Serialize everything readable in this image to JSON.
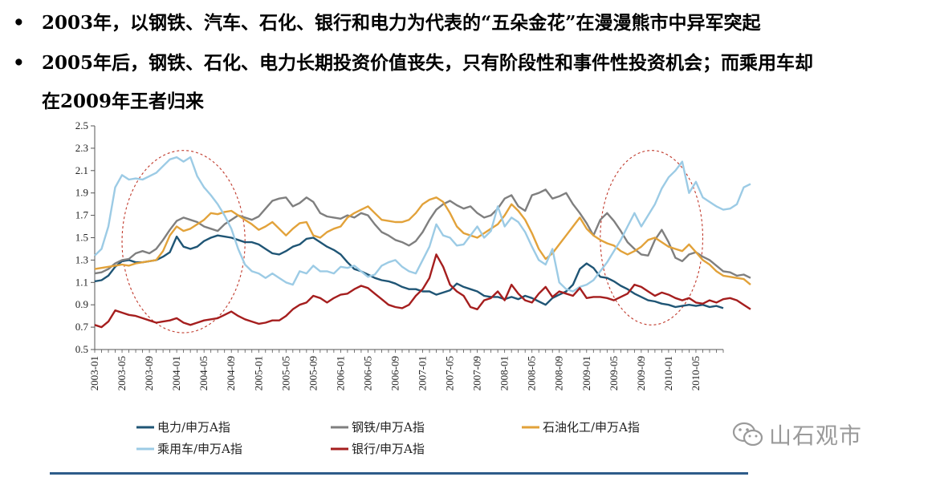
{
  "bullets": [
    {
      "marker": "•",
      "text": "2003年，以钢铁、汽车、石化、银行和电力为代表的“五朵金花”在漫漫熊市中异军突起"
    },
    {
      "marker": "•",
      "text": "2005年后，钢铁、石化、电力长期投资价值丧失，只有阶段性和事件性投资机会；而乘用车却",
      "continuation": "在2009年王者归来"
    }
  ],
  "watermark": {
    "icon": "wechat-icon",
    "text": "山石观市"
  },
  "chart_data": {
    "type": "line",
    "title": "",
    "xlabel": "",
    "ylabel": "",
    "ylim": [
      0.5,
      2.5
    ],
    "yticks": [
      "0.5",
      "0.7",
      "0.9",
      "1.1",
      "1.3",
      "1.5",
      "1.7",
      "1.9",
      "2.1",
      "2.3",
      "2.5"
    ],
    "xticks": [
      "2003-01",
      "2003-05",
      "2003-09",
      "2004-01",
      "2004-05",
      "2004-09",
      "2005-01",
      "2005-05",
      "2005-09",
      "2006-01",
      "2006-05",
      "2006-09",
      "2007-01",
      "2007-05",
      "2007-09",
      "2008-01",
      "2008-05",
      "2008-09",
      "2009-01",
      "2009-05",
      "2009-09",
      "2010-01",
      "2010-05"
    ],
    "x_start": "2003-01",
    "x_end": "2010-09",
    "grid": false,
    "legend_position": "bottom",
    "annotations": [
      {
        "shape": "dashed-ellipse",
        "period": "2003-2004",
        "x_range": [
          4,
          22
        ],
        "y_range": [
          0.65,
          2.28
        ]
      },
      {
        "shape": "dashed-ellipse",
        "period": "2009-2010",
        "x_range": [
          74,
          89
        ],
        "y_range": [
          0.72,
          2.28
        ]
      }
    ],
    "series": [
      {
        "name": "电力/申万A指",
        "color": "#1f5575",
        "values": [
          1.11,
          1.12,
          1.16,
          1.24,
          1.29,
          1.3,
          1.28,
          1.28,
          1.29,
          1.3,
          1.33,
          1.37,
          1.51,
          1.42,
          1.4,
          1.42,
          1.47,
          1.5,
          1.52,
          1.51,
          1.5,
          1.48,
          1.46,
          1.46,
          1.44,
          1.4,
          1.36,
          1.35,
          1.38,
          1.42,
          1.44,
          1.49,
          1.5,
          1.46,
          1.42,
          1.39,
          1.35,
          1.28,
          1.22,
          1.2,
          1.17,
          1.14,
          1.12,
          1.11,
          1.09,
          1.06,
          1.04,
          1.04,
          1.02,
          1.02,
          0.99,
          1.01,
          1.03,
          1.09,
          1.06,
          1.04,
          1.02,
          0.98,
          0.97,
          0.97,
          0.95,
          0.97,
          0.95,
          0.98,
          0.96,
          0.93,
          0.9,
          0.96,
          0.99,
          1.02,
          1.08,
          1.22,
          1.27,
          1.23,
          1.15,
          1.14,
          1.11,
          1.07,
          1.04,
          1.0,
          0.97,
          0.94,
          0.93,
          0.91,
          0.9,
          0.88,
          0.89,
          0.9,
          0.89,
          0.9,
          0.88,
          0.89,
          0.87
        ]
      },
      {
        "name": "钢铁/申万A指",
        "color": "#7f7f7f",
        "values": [
          1.18,
          1.19,
          1.22,
          1.27,
          1.3,
          1.31,
          1.36,
          1.38,
          1.36,
          1.4,
          1.48,
          1.57,
          1.65,
          1.68,
          1.66,
          1.64,
          1.6,
          1.58,
          1.56,
          1.62,
          1.66,
          1.7,
          1.68,
          1.66,
          1.69,
          1.76,
          1.83,
          1.85,
          1.86,
          1.78,
          1.81,
          1.86,
          1.82,
          1.72,
          1.69,
          1.68,
          1.67,
          1.7,
          1.68,
          1.72,
          1.7,
          1.62,
          1.55,
          1.52,
          1.48,
          1.46,
          1.43,
          1.47,
          1.55,
          1.66,
          1.75,
          1.8,
          1.83,
          1.79,
          1.76,
          1.78,
          1.72,
          1.68,
          1.7,
          1.76,
          1.85,
          1.88,
          1.78,
          1.74,
          1.88,
          1.9,
          1.93,
          1.85,
          1.87,
          1.9,
          1.8,
          1.72,
          1.63,
          1.52,
          1.66,
          1.72,
          1.65,
          1.56,
          1.46,
          1.4,
          1.35,
          1.34,
          1.48,
          1.57,
          1.46,
          1.32,
          1.29,
          1.35,
          1.37,
          1.33,
          1.3,
          1.25,
          1.2,
          1.19,
          1.16,
          1.17,
          1.14
        ]
      },
      {
        "name": "石油化工/申万A指",
        "color": "#e2a23a",
        "values": [
          1.22,
          1.23,
          1.24,
          1.25,
          1.26,
          1.25,
          1.27,
          1.28,
          1.29,
          1.3,
          1.38,
          1.52,
          1.6,
          1.56,
          1.58,
          1.62,
          1.66,
          1.72,
          1.71,
          1.73,
          1.74,
          1.7,
          1.66,
          1.62,
          1.57,
          1.6,
          1.64,
          1.58,
          1.52,
          1.58,
          1.63,
          1.64,
          1.52,
          1.5,
          1.55,
          1.58,
          1.6,
          1.68,
          1.72,
          1.75,
          1.78,
          1.72,
          1.66,
          1.65,
          1.64,
          1.64,
          1.66,
          1.72,
          1.8,
          1.84,
          1.86,
          1.82,
          1.72,
          1.6,
          1.54,
          1.52,
          1.5,
          1.54,
          1.58,
          1.62,
          1.7,
          1.8,
          1.74,
          1.66,
          1.54,
          1.4,
          1.31,
          1.36,
          1.44,
          1.52,
          1.6,
          1.68,
          1.58,
          1.52,
          1.48,
          1.45,
          1.43,
          1.38,
          1.35,
          1.38,
          1.42,
          1.48,
          1.5,
          1.46,
          1.42,
          1.4,
          1.38,
          1.44,
          1.37,
          1.3,
          1.26,
          1.2,
          1.16,
          1.15,
          1.14,
          1.13,
          1.08
        ]
      },
      {
        "name": "乘用车/申万A指",
        "color": "#9ccbe5",
        "values": [
          1.34,
          1.4,
          1.6,
          1.95,
          2.06,
          2.02,
          2.03,
          2.02,
          2.05,
          2.08,
          2.14,
          2.2,
          2.22,
          2.18,
          2.22,
          2.05,
          1.95,
          1.88,
          1.8,
          1.7,
          1.58,
          1.4,
          1.26,
          1.2,
          1.18,
          1.14,
          1.18,
          1.14,
          1.1,
          1.08,
          1.2,
          1.18,
          1.25,
          1.2,
          1.2,
          1.18,
          1.24,
          1.23,
          1.25,
          1.2,
          1.15,
          1.17,
          1.25,
          1.28,
          1.3,
          1.24,
          1.2,
          1.18,
          1.3,
          1.42,
          1.62,
          1.52,
          1.5,
          1.43,
          1.44,
          1.52,
          1.6,
          1.5,
          1.56,
          1.78,
          1.6,
          1.68,
          1.64,
          1.55,
          1.42,
          1.3,
          1.26,
          1.4,
          1.1,
          1.04,
          1.02,
          1.06,
          1.08,
          1.12,
          1.2,
          1.28,
          1.38,
          1.48,
          1.6,
          1.72,
          1.6,
          1.7,
          1.8,
          1.94,
          2.04,
          2.1,
          2.18,
          1.9,
          2.0,
          1.86,
          1.82,
          1.78,
          1.75,
          1.76,
          1.8,
          1.95,
          1.98
        ]
      },
      {
        "name": "银行/申万A指",
        "color": "#a51e1e",
        "values": [
          0.72,
          0.7,
          0.75,
          0.85,
          0.83,
          0.81,
          0.8,
          0.78,
          0.76,
          0.74,
          0.75,
          0.76,
          0.78,
          0.74,
          0.72,
          0.74,
          0.76,
          0.77,
          0.78,
          0.81,
          0.84,
          0.8,
          0.77,
          0.75,
          0.73,
          0.74,
          0.76,
          0.76,
          0.8,
          0.86,
          0.9,
          0.92,
          0.98,
          0.96,
          0.92,
          0.96,
          0.99,
          1.0,
          1.04,
          1.07,
          1.05,
          1.0,
          0.95,
          0.9,
          0.88,
          0.87,
          0.9,
          0.98,
          1.04,
          1.14,
          1.35,
          1.24,
          1.08,
          1.02,
          0.98,
          0.88,
          0.86,
          0.94,
          0.96,
          1.02,
          0.94,
          1.08,
          1.0,
          0.94,
          0.92,
          1.0,
          1.06,
          0.97,
          1.02,
          1.0,
          0.98,
          1.05,
          0.96,
          0.97,
          0.97,
          0.96,
          0.94,
          0.97,
          1.0,
          1.08,
          1.06,
          1.02,
          0.98,
          1.01,
          0.99,
          0.96,
          0.94,
          0.96,
          0.92,
          0.91,
          0.94,
          0.92,
          0.95,
          0.96,
          0.94,
          0.9,
          0.86
        ]
      }
    ]
  }
}
